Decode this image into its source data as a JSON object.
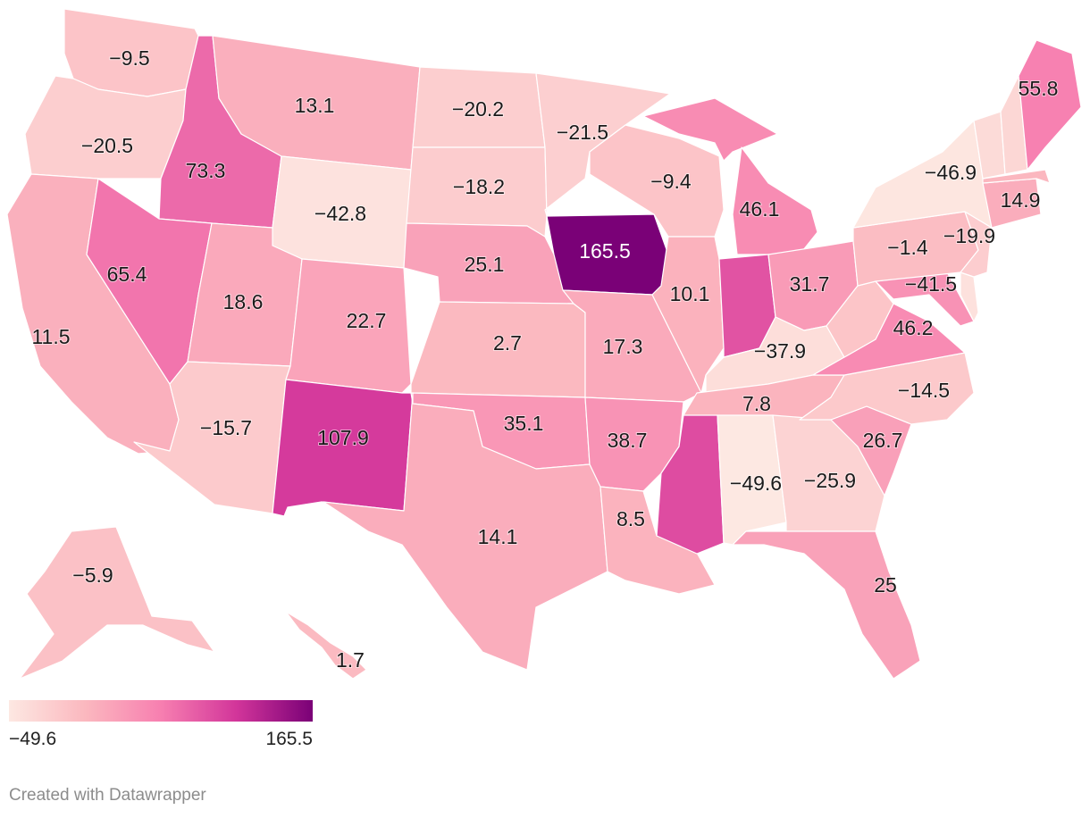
{
  "map": {
    "type": "choropleth",
    "regions": [
      {
        "id": "WA",
        "value": -9.5
      },
      {
        "id": "OR",
        "value": -20.5
      },
      {
        "id": "CA",
        "value": 11.5
      },
      {
        "id": "ID",
        "value": 73.3
      },
      {
        "id": "NV",
        "value": 65.4
      },
      {
        "id": "MT",
        "value": 13.1
      },
      {
        "id": "WY",
        "value": -42.8
      },
      {
        "id": "UT",
        "value": 18.6
      },
      {
        "id": "AZ",
        "value": -15.7
      },
      {
        "id": "CO",
        "value": 22.7
      },
      {
        "id": "NM",
        "value": 107.9
      },
      {
        "id": "ND",
        "value": -20.2
      },
      {
        "id": "SD",
        "value": -18.2
      },
      {
        "id": "NE",
        "value": 25.1
      },
      {
        "id": "KS",
        "value": 2.7
      },
      {
        "id": "OK",
        "value": 35.1
      },
      {
        "id": "TX",
        "value": 14.1
      },
      {
        "id": "MN",
        "value": -21.5
      },
      {
        "id": "IA",
        "value": 165.5
      },
      {
        "id": "MO",
        "value": 17.3
      },
      {
        "id": "AR",
        "value": 38.7
      },
      {
        "id": "LA",
        "value": 8.5
      },
      {
        "id": "WI",
        "value": -9.4
      },
      {
        "id": "IL",
        "value": 10.1
      },
      {
        "id": "MI",
        "value": 46.1
      },
      {
        "id": "IN",
        "value": 90.0
      },
      {
        "id": "OH",
        "value": 31.7
      },
      {
        "id": "KY",
        "value": -37.9
      },
      {
        "id": "TN",
        "value": 7.8
      },
      {
        "id": "MS",
        "value": 95.0
      },
      {
        "id": "AL",
        "value": -49.6
      },
      {
        "id": "GA",
        "value": -25.9
      },
      {
        "id": "FL",
        "value": 25
      },
      {
        "id": "SC",
        "value": 26.7
      },
      {
        "id": "NC",
        "value": -14.5
      },
      {
        "id": "VA",
        "value": 46.2
      },
      {
        "id": "WV",
        "value": -10.0
      },
      {
        "id": "MD",
        "value": 40.0
      },
      {
        "id": "DE",
        "value": -41.5
      },
      {
        "id": "PA",
        "value": -1.4
      },
      {
        "id": "NJ",
        "value": -19.9
      },
      {
        "id": "NY",
        "value": -46.9
      },
      {
        "id": "CT",
        "value": 14.9
      },
      {
        "id": "MA",
        "value": 5.0
      },
      {
        "id": "VT",
        "value": -35.0
      },
      {
        "id": "NH",
        "value": -30.0
      },
      {
        "id": "ME",
        "value": 55.8
      },
      {
        "id": "AK",
        "value": -5.9
      },
      {
        "id": "HI",
        "value": 1.7
      }
    ],
    "labels": [
      {
        "id": "WA",
        "text": "−9.5"
      },
      {
        "id": "OR",
        "text": "−20.5"
      },
      {
        "id": "CA",
        "text": "11.5"
      },
      {
        "id": "ID",
        "text": "73.3"
      },
      {
        "id": "NV",
        "text": "65.4"
      },
      {
        "id": "MT",
        "text": "13.1"
      },
      {
        "id": "WY",
        "text": "−42.8"
      },
      {
        "id": "UT",
        "text": "18.6"
      },
      {
        "id": "AZ",
        "text": "−15.7"
      },
      {
        "id": "CO",
        "text": "22.7"
      },
      {
        "id": "NM",
        "text": "107.9"
      },
      {
        "id": "ND",
        "text": "−20.2"
      },
      {
        "id": "SD",
        "text": "−18.2"
      },
      {
        "id": "NE",
        "text": "25.1"
      },
      {
        "id": "KS",
        "text": "2.7"
      },
      {
        "id": "OK",
        "text": "35.1"
      },
      {
        "id": "TX",
        "text": "14.1"
      },
      {
        "id": "MN",
        "text": "−21.5"
      },
      {
        "id": "IA",
        "text": "165.5"
      },
      {
        "id": "MO",
        "text": "17.3"
      },
      {
        "id": "AR",
        "text": "38.7"
      },
      {
        "id": "LA",
        "text": "8.5"
      },
      {
        "id": "WI",
        "text": "−9.4"
      },
      {
        "id": "IL",
        "text": "10.1"
      },
      {
        "id": "MI",
        "text": "46.1"
      },
      {
        "id": "OH",
        "text": "31.7"
      },
      {
        "id": "KY",
        "text": "−37.9"
      },
      {
        "id": "TN",
        "text": "7.8"
      },
      {
        "id": "AL",
        "text": "−49.6"
      },
      {
        "id": "GA",
        "text": "−25.9"
      },
      {
        "id": "FL",
        "text": "25"
      },
      {
        "id": "SC",
        "text": "26.7"
      },
      {
        "id": "NC",
        "text": "−14.5"
      },
      {
        "id": "VA",
        "text": "46.2"
      },
      {
        "id": "DE",
        "text": "−41.5"
      },
      {
        "id": "PA",
        "text": "−1.4"
      },
      {
        "id": "NJ",
        "text": "−19.9"
      },
      {
        "id": "NY",
        "text": "−46.9"
      },
      {
        "id": "CT",
        "text": "14.9"
      },
      {
        "id": "ME",
        "text": "55.8"
      },
      {
        "id": "AK",
        "text": "−5.9"
      },
      {
        "id": "HI",
        "text": "1.7"
      }
    ],
    "scale": {
      "min": -49.6,
      "max": 165.5
    },
    "colors": [
      "#fde8e2",
      "#fbb8bf",
      "#f77fb0",
      "#d2359a",
      "#7a0177"
    ]
  },
  "legend": {
    "min_label": "−49.6",
    "max_label": "165.5"
  },
  "credit": "Created with Datawrapper"
}
